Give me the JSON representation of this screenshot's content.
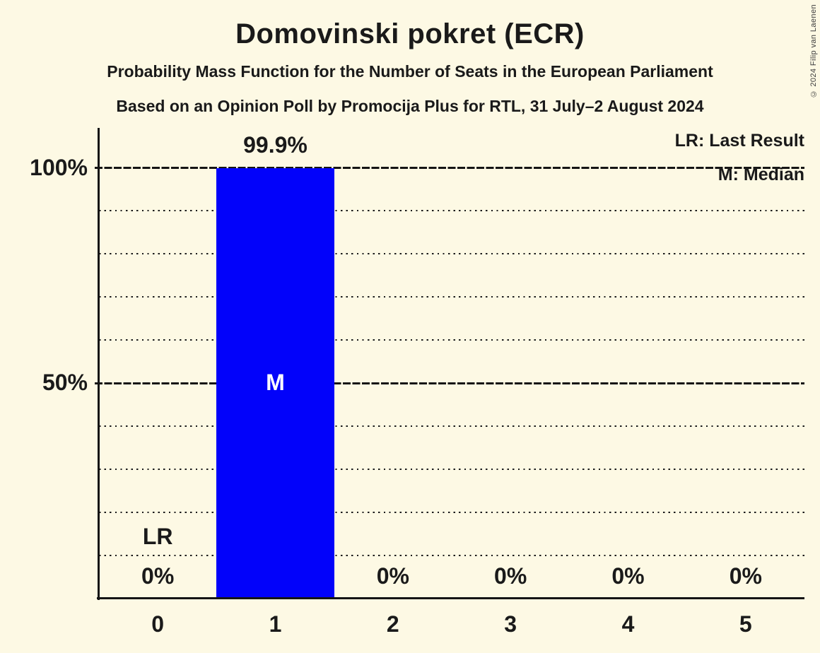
{
  "chart_data": {
    "type": "bar",
    "title": "Domovinski pokret (ECR)",
    "subtitle": "Probability Mass Function for the Number of Seats in the European Parliament",
    "poll_info": "Based on an Opinion Poll by Promocija Plus for RTL, 31 July–2 August 2024",
    "copyright": "© 2024 Filip van Laenen",
    "categories": [
      "0",
      "1",
      "2",
      "3",
      "4",
      "5"
    ],
    "values": [
      0,
      99.9,
      0,
      0,
      0,
      0
    ],
    "value_labels": [
      "0%",
      "99.9%",
      "0%",
      "0%",
      "0%",
      "0%"
    ],
    "y_tick_labels": [
      "100%",
      "50%"
    ],
    "ylim": [
      0,
      100
    ],
    "y_gridlines_dotted_pct": [
      10,
      20,
      30,
      40,
      60,
      70,
      80,
      90
    ],
    "y_gridlines_solid_pct": [
      50,
      100
    ],
    "legend": [
      "LR: Last Result",
      "M: Median"
    ],
    "annotations": {
      "lr_label": "LR",
      "lr_seat": "0",
      "median_label": "M",
      "median_seat": "1"
    },
    "grid": "dotted-10pct-solid-50-100",
    "legend_position": "top-right",
    "colors": {
      "bar": "#0202fa",
      "background": "#fdf9e4",
      "text": "#1a1a1a",
      "line": "#151515"
    }
  }
}
